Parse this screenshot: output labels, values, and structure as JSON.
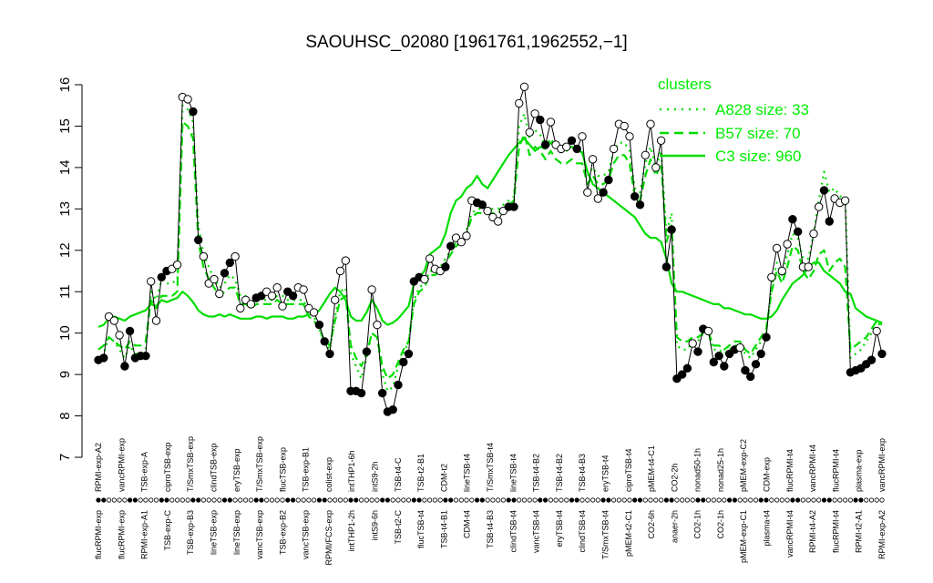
{
  "chart_data": {
    "type": "line",
    "title": "SAOUHSC_02080 [1961761,1962552,−1]",
    "xlabel": "",
    "ylabel": "",
    "ylim": [
      7,
      16
    ],
    "yticks": [
      7,
      8,
      9,
      10,
      11,
      12,
      13,
      14,
      15,
      16
    ],
    "legend": {
      "title": "clusters",
      "position": "top-right",
      "entries": [
        {
          "label": "A828 size: 33",
          "style": "dotted"
        },
        {
          "label": "B57 size: 70",
          "style": "dashed"
        },
        {
          "label": "C3 size: 960",
          "style": "solid"
        }
      ]
    },
    "colors": {
      "gene_line": "#000000",
      "cluster": "#00dd00",
      "legend_text": "#00ee00"
    },
    "bottom_tick_labels": [
      "flucRPMI-exp",
      "flucRPMI-exp",
      "RPMI-exp-A1",
      "TSB-exp-C",
      "TSB-exp-B3",
      "lineTSB-exp",
      "lineTSB-exp",
      "vancTSB-exp",
      "TSB-exp-B2",
      "vancTSB-exp",
      "RPMI/FCS-exp",
      "intTHP1-2h",
      "intS9-6h",
      "TSB-t2-C",
      "flucTSB-t4",
      "TSB-t4-B1",
      "CDM-t4",
      "TSB-t4-B3",
      "clindTSB-t4",
      "vancTSB-t4",
      "eryTSB-t4",
      "clindTSB-t4",
      "T/SmxTSB-t4",
      "pMEM-t2-C1",
      "CO2-6h",
      "anaer-2h",
      "CO2-1h",
      "CO2-1h",
      "pMEM-exp-C1",
      "plasma-t4",
      "vancRPMI-t4",
      "RPMI-t4-A2",
      "flucRPMI-t4",
      "RPMI-t2-A1",
      "RPMI-exp-A2"
    ],
    "top_tick_labels": [
      "RPMI-exp-A2",
      "vancRPMI-exp",
      "TSB-exp-A",
      "ciproTSB-exp",
      "T/SmxTSB-exp",
      "clindTSB-exp",
      "eryTSB-exp",
      "T/SmxTSB-exp",
      "flucTSB-exp",
      "TSB-exp-B1",
      "colist-exp",
      "intTHP1-6h",
      "intS9-2h",
      "TSB-t4-C",
      "TSB-t2-B1",
      "CDM-t2",
      "lineTSB-t4",
      "T/SmxTSB-t4",
      "lineTSB-t4",
      "TSB-t4-B2",
      "TSB-t4-B2",
      "TSB-t4-B3",
      "eryTSB-t4",
      "ciproTSB-t4",
      "pMEM-t4-C1",
      "CO2-2h",
      "nonad50-1h",
      "nonad25-1h",
      "pMEM-exp-C2",
      "CDM-exp",
      "flucRPMI-t4",
      "vancRPMI-t4",
      "flucRPMI-t4",
      "plasma-exp",
      "vancRPMI-exp"
    ],
    "series": [
      {
        "name": "",
        "kind": "gene",
        "values": [
          9.35,
          9.4,
          10.4,
          10.3,
          9.95,
          9.2,
          10.05,
          9.4,
          9.45,
          9.45,
          11.25,
          10.3,
          11.35,
          11.5,
          11.55,
          11.65,
          15.7,
          15.65,
          15.35,
          12.25,
          11.85,
          11.2,
          11.3,
          10.95,
          11.45,
          11.7,
          11.85,
          10.6,
          10.8,
          10.7,
          10.85,
          10.9,
          11.0,
          10.9,
          11.1,
          10.65,
          11.0,
          10.9,
          11.1,
          11.05,
          10.6,
          10.5,
          10.2,
          9.8,
          9.5,
          10.8,
          11.5,
          11.75,
          8.6,
          8.6,
          8.55,
          9.55,
          11.05,
          10.2,
          8.55,
          8.1,
          8.15,
          8.75,
          9.3,
          9.5,
          11.25,
          11.35,
          11.3,
          11.8,
          11.55,
          11.5,
          11.6,
          12.1,
          12.3,
          12.2,
          12.35,
          13.2,
          13.15,
          13.1,
          12.95,
          12.8,
          12.7,
          12.95,
          13.05,
          13.05,
          15.55,
          15.95,
          14.85,
          15.3,
          15.15,
          14.55,
          15.1,
          14.55,
          14.45,
          14.5,
          14.65,
          14.45,
          14.75,
          13.4,
          14.2,
          13.25,
          13.4,
          13.7,
          14.45,
          15.05,
          15.0,
          14.75,
          13.3,
          13.1,
          14.3,
          15.05,
          14.0,
          14.65,
          11.6,
          12.5,
          8.9,
          9.0,
          9.15,
          9.75,
          9.55,
          10.1,
          10.05,
          9.3,
          9.45,
          9.2,
          9.5,
          9.6,
          9.65,
          9.1,
          8.95,
          9.25,
          9.5,
          9.9,
          11.35,
          12.05,
          11.5,
          12.15,
          12.75,
          12.45,
          11.6,
          11.6,
          12.4,
          13.05,
          13.45,
          12.7,
          13.25,
          13.15,
          13.2,
          9.05,
          9.1,
          9.15,
          9.25,
          9.35,
          10.05,
          9.5
        ]
      },
      {
        "name": "A828 size: 33",
        "kind": "cluster",
        "values": [
          9.3,
          9.5,
          9.9,
          9.8,
          9.6,
          9.4,
          9.7,
          9.5,
          9.5,
          9.6,
          11.0,
          10.8,
          11.3,
          11.2,
          11.2,
          11.3,
          15.5,
          15.4,
          15.1,
          12.6,
          11.9,
          11.6,
          11.3,
          11.1,
          11.2,
          11.4,
          11.3,
          10.9,
          10.9,
          10.7,
          10.8,
          10.8,
          10.8,
          10.8,
          10.9,
          10.9,
          10.8,
          10.8,
          10.8,
          10.8,
          10.5,
          10.4,
          10.1,
          9.8,
          9.6,
          10.4,
          11.0,
          11.1,
          9.5,
          9.2,
          8.9,
          9.4,
          10.0,
          9.9,
          9.0,
          8.6,
          8.7,
          9.2,
          9.5,
          9.8,
          10.8,
          11.1,
          11.2,
          11.5,
          11.5,
          11.6,
          11.8,
          12.0,
          12.2,
          12.3,
          12.5,
          12.9,
          13.0,
          13.0,
          13.0,
          13.0,
          13.0,
          13.1,
          13.2,
          13.3,
          15.0,
          15.3,
          14.7,
          14.9,
          14.8,
          14.5,
          14.7,
          14.5,
          14.4,
          14.4,
          14.5,
          14.4,
          14.4,
          13.8,
          14.0,
          13.8,
          13.8,
          13.9,
          14.4,
          14.6,
          14.6,
          14.4,
          13.5,
          13.4,
          14.1,
          14.5,
          14.0,
          14.4,
          12.4,
          12.9,
          9.7,
          9.6,
          9.6,
          9.8,
          9.8,
          10.0,
          10.0,
          9.6,
          9.6,
          9.5,
          9.6,
          9.7,
          9.7,
          9.5,
          9.4,
          9.6,
          9.8,
          10.0,
          11.1,
          11.7,
          11.4,
          11.9,
          12.4,
          12.3,
          11.8,
          11.8,
          12.4,
          13.2,
          13.9,
          13.4,
          13.5,
          13.3,
          13.3,
          9.4,
          9.5,
          9.6,
          9.8,
          10.0,
          10.3,
          10.1
        ]
      },
      {
        "name": "B57 size: 70",
        "kind": "cluster",
        "values": [
          9.6,
          9.7,
          9.9,
          9.8,
          9.7,
          9.6,
          9.8,
          9.7,
          9.7,
          9.8,
          10.8,
          10.6,
          10.9,
          10.9,
          10.9,
          11.0,
          15.1,
          15.0,
          14.7,
          12.2,
          11.6,
          11.3,
          11.1,
          10.9,
          11.0,
          11.1,
          11.1,
          10.7,
          10.7,
          10.6,
          10.7,
          10.7,
          10.7,
          10.7,
          10.8,
          10.7,
          10.7,
          10.7,
          10.7,
          10.7,
          10.4,
          10.3,
          10.1,
          9.8,
          9.7,
          10.3,
          10.8,
          10.9,
          9.7,
          9.4,
          9.2,
          9.5,
          10.0,
          9.9,
          9.2,
          8.9,
          9.0,
          9.3,
          9.6,
          9.8,
          10.7,
          11.0,
          11.1,
          11.4,
          11.4,
          11.5,
          11.7,
          11.9,
          12.1,
          12.2,
          12.4,
          12.8,
          12.9,
          12.9,
          12.9,
          12.9,
          12.9,
          13.0,
          13.1,
          13.2,
          14.5,
          14.8,
          14.3,
          14.5,
          14.4,
          14.2,
          14.4,
          14.2,
          14.1,
          14.1,
          14.2,
          14.1,
          14.1,
          13.6,
          13.8,
          13.6,
          13.6,
          13.7,
          14.1,
          14.3,
          14.3,
          14.1,
          13.3,
          13.2,
          13.8,
          14.2,
          13.8,
          14.1,
          12.2,
          12.6,
          9.9,
          9.8,
          9.8,
          9.9,
          9.9,
          10.0,
          10.0,
          9.7,
          9.7,
          9.6,
          9.7,
          9.8,
          9.8,
          9.6,
          9.5,
          9.7,
          9.9,
          10.1,
          11.0,
          11.5,
          11.2,
          11.6,
          12.1,
          12.0,
          11.5,
          11.3,
          11.5,
          11.9,
          12.0,
          11.5,
          11.7,
          11.8,
          11.6,
          9.6,
          9.7,
          9.8,
          9.9,
          10.1,
          10.3,
          10.2
        ]
      },
      {
        "name": "C3 size: 960",
        "kind": "cluster",
        "values": [
          10.15,
          10.2,
          10.35,
          10.4,
          10.35,
          10.3,
          10.4,
          10.45,
          10.5,
          10.55,
          10.7,
          10.65,
          10.8,
          10.75,
          10.8,
          10.85,
          11.0,
          10.9,
          10.75,
          10.55,
          10.45,
          10.4,
          10.4,
          10.45,
          10.4,
          10.45,
          10.4,
          10.35,
          10.35,
          10.35,
          10.4,
          10.4,
          10.35,
          10.4,
          10.4,
          10.4,
          10.35,
          10.35,
          10.4,
          10.4,
          10.45,
          10.45,
          10.55,
          10.75,
          10.95,
          11.1,
          11.0,
          10.8,
          10.4,
          10.3,
          10.3,
          10.5,
          10.8,
          10.6,
          10.3,
          10.2,
          10.25,
          10.35,
          10.5,
          10.65,
          11.2,
          11.35,
          11.5,
          11.9,
          12.0,
          12.1,
          12.4,
          12.9,
          13.2,
          13.3,
          13.5,
          13.6,
          13.8,
          13.6,
          13.5,
          13.7,
          13.9,
          14.1,
          14.3,
          14.45,
          14.6,
          14.7,
          14.55,
          14.4,
          14.5,
          14.45,
          14.6,
          14.5,
          14.5,
          14.45,
          14.5,
          14.45,
          14.35,
          13.9,
          13.6,
          13.5,
          13.4,
          13.3,
          13.2,
          13.1,
          13.0,
          12.9,
          12.8,
          12.6,
          12.4,
          12.3,
          12.3,
          12.2,
          11.8,
          11.2,
          11.0,
          11.0,
          10.95,
          10.9,
          10.85,
          10.8,
          10.75,
          10.7,
          10.7,
          10.6,
          10.6,
          10.55,
          10.5,
          10.45,
          10.45,
          10.4,
          10.35,
          10.35,
          10.4,
          10.55,
          10.8,
          11.0,
          11.2,
          11.3,
          11.4,
          11.6,
          11.7,
          11.7,
          11.5,
          11.4,
          11.3,
          11.2,
          11.0,
          10.95,
          10.6,
          10.5,
          10.4,
          10.35,
          10.3,
          10.25
        ]
      }
    ]
  }
}
